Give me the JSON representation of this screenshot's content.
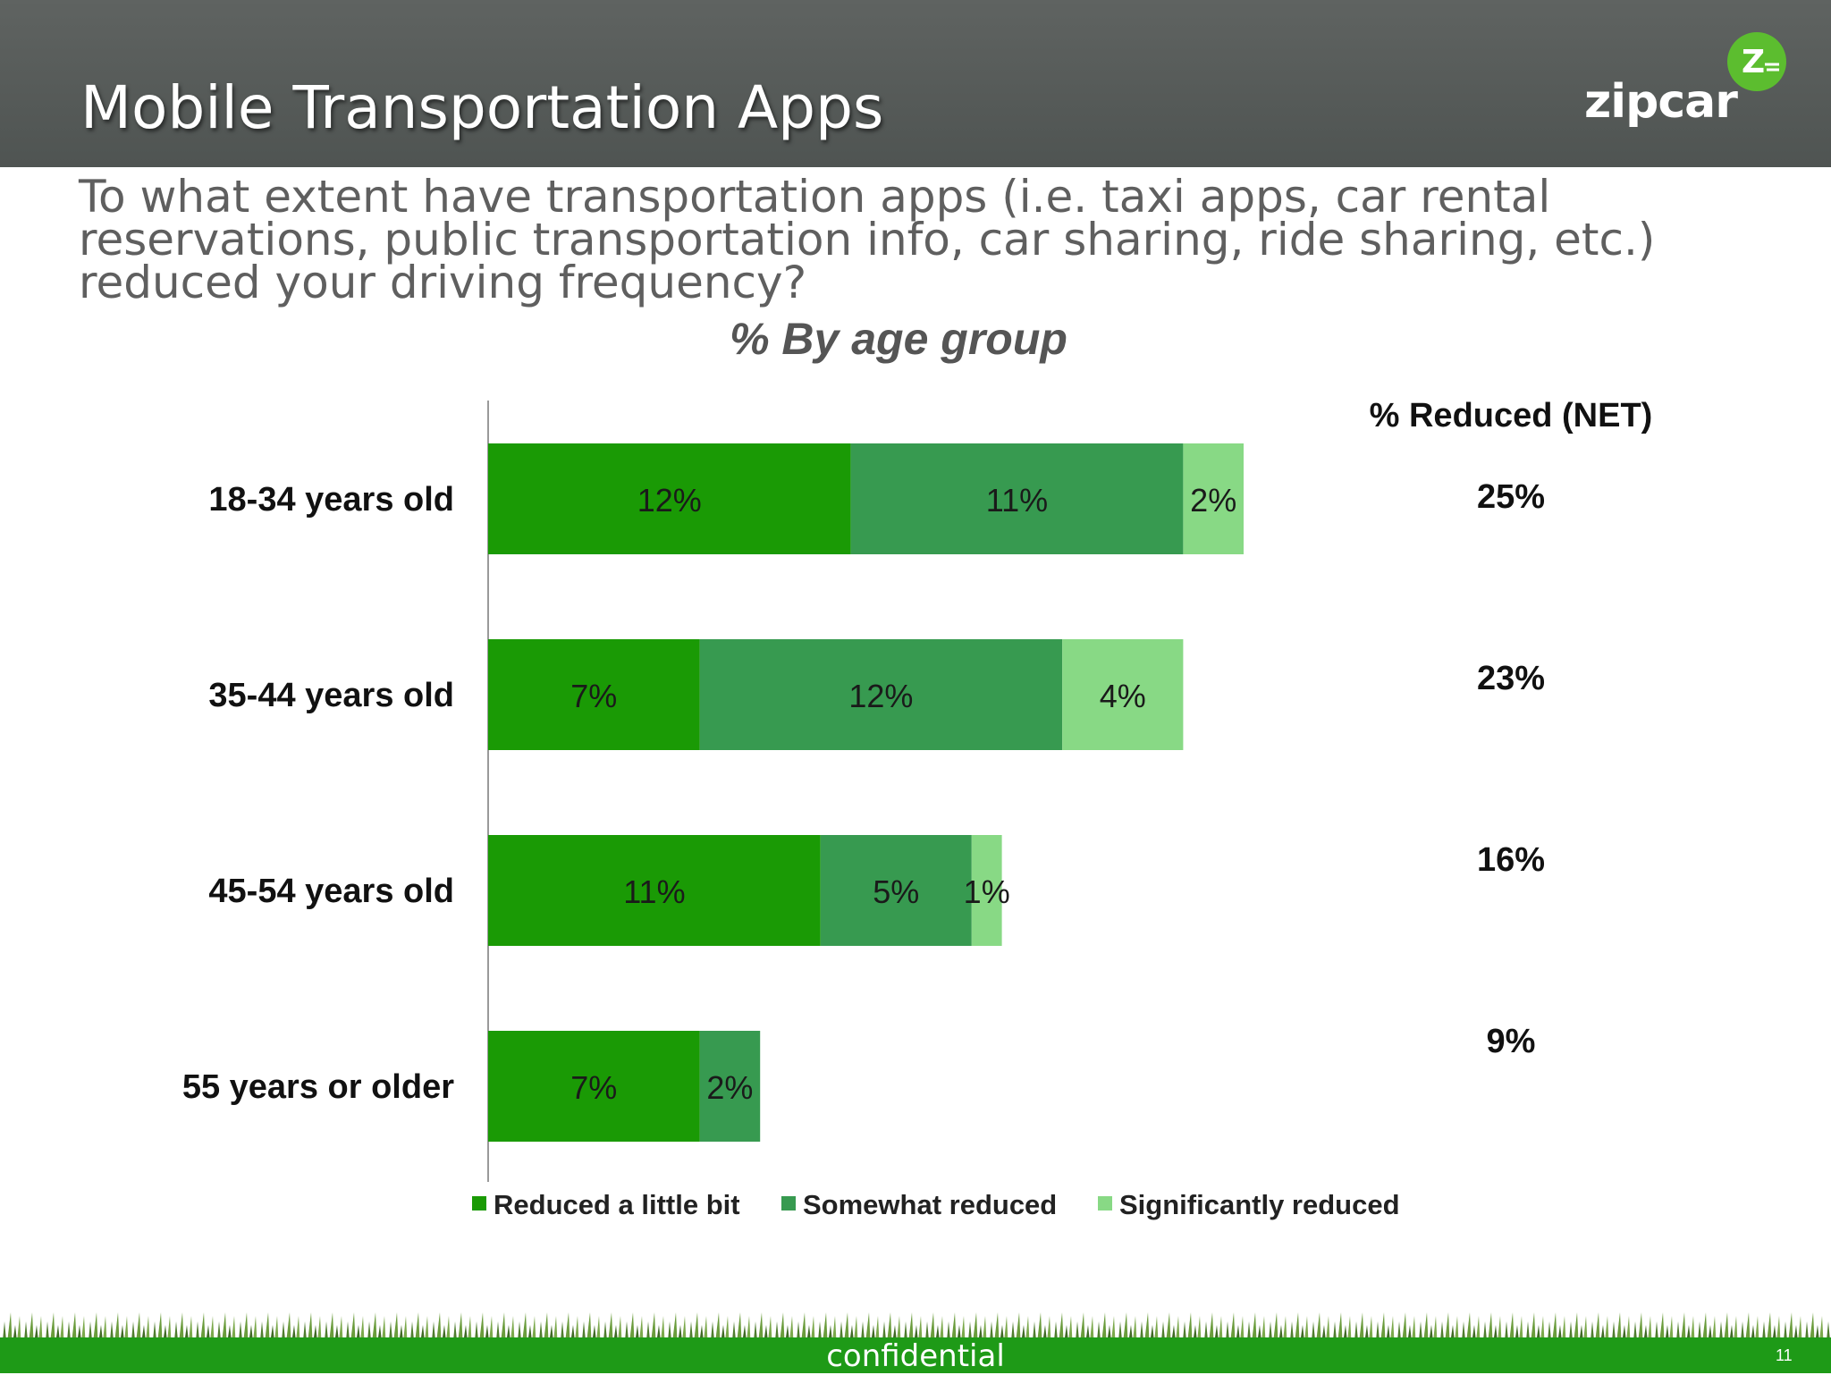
{
  "slide": {
    "title": "Mobile Transportation Apps",
    "question": "To what extent have transportation apps (i.e. taxi apps, car rental reservations, public transportation info, car sharing, ride sharing, etc.) reduced your driving frequency?",
    "logo_text": "zipcar",
    "logo_badge_letter": "Z",
    "footer_text": "confidential",
    "page_number": "11"
  },
  "net": {
    "header": "% Reduced (NET)",
    "values": [
      "25%",
      "23%",
      "16%",
      "9%"
    ]
  },
  "chart_data": {
    "type": "bar",
    "orientation": "horizontal",
    "stacked": true,
    "title": "% By age group",
    "categories": [
      "18-34 years old",
      "35-44 years old",
      "45-54 years old",
      "55 years or older"
    ],
    "series": [
      {
        "name": "Reduced a little bit",
        "values": [
          12,
          7,
          11,
          7
        ],
        "labels": [
          "12%",
          "7%",
          "11%",
          "7%"
        ],
        "color": "#1a9a05"
      },
      {
        "name": "Somewhat reduced",
        "values": [
          11,
          12,
          5,
          2
        ],
        "labels": [
          "11%",
          "12%",
          "5%",
          "2%"
        ],
        "color": "#379a50"
      },
      {
        "name": "Significantly reduced",
        "values": [
          2,
          4,
          1,
          0
        ],
        "labels": [
          "2%",
          "4%",
          "1%",
          ""
        ],
        "color": "#88d985"
      }
    ],
    "xlim": [
      0,
      32
    ],
    "grid": false,
    "legend": "bottom"
  }
}
